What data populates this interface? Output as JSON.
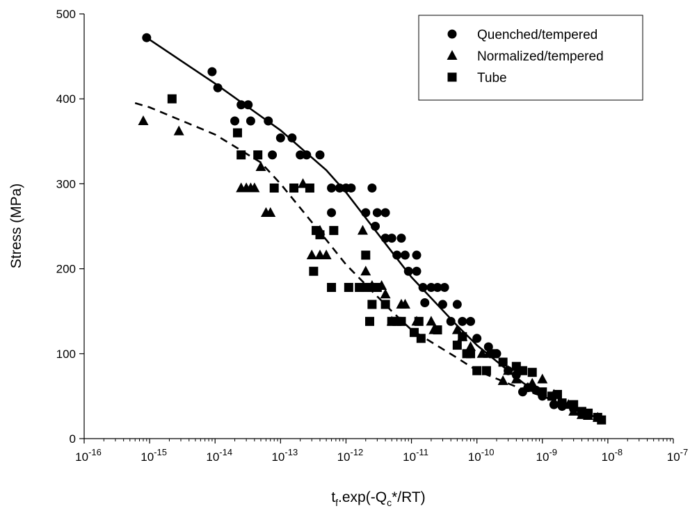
{
  "chart_data": {
    "type": "scatter",
    "title": "",
    "xlabel": {
      "base": "t",
      "sub": "f",
      "mid": ".exp(-Q",
      "sub2": "c",
      "tail": "*/RT)"
    },
    "ylabel": "Stress (MPa)",
    "xscale": "log",
    "xlim": [
      1e-16,
      1e-07
    ],
    "ylim": [
      0,
      500
    ],
    "x_ticks": [
      {
        "base": "10",
        "exp": "-16",
        "value": 1e-16
      },
      {
        "base": "10",
        "exp": "-15",
        "value": 1e-15
      },
      {
        "base": "10",
        "exp": "-14",
        "value": 1e-14
      },
      {
        "base": "10",
        "exp": "-13",
        "value": 1e-13
      },
      {
        "base": "10",
        "exp": "-12",
        "value": 1e-12
      },
      {
        "base": "10",
        "exp": "-11",
        "value": 1e-11
      },
      {
        "base": "10",
        "exp": "-10",
        "value": 1e-10
      },
      {
        "base": "10",
        "exp": "-9",
        "value": 1e-09
      },
      {
        "base": "10",
        "exp": "-8",
        "value": 1e-08
      },
      {
        "base": "10",
        "exp": "-7",
        "value": 1e-07
      }
    ],
    "y_ticks": [
      0,
      100,
      200,
      300,
      400,
      500
    ],
    "grid": false,
    "legend_position": "top-right",
    "series": [
      {
        "name": "Quenched/tempered",
        "marker": "circle",
        "color": "#000000",
        "points": [
          [
            9e-16,
            472
          ],
          [
            9e-15,
            432
          ],
          [
            1.1e-14,
            413
          ],
          [
            2.5e-14,
            393
          ],
          [
            3.2e-14,
            393
          ],
          [
            2e-14,
            374
          ],
          [
            3.5e-14,
            374
          ],
          [
            6.5e-14,
            374
          ],
          [
            7.5e-14,
            334
          ],
          [
            1e-13,
            354
          ],
          [
            1.5e-13,
            354
          ],
          [
            2e-13,
            334
          ],
          [
            2.5e-13,
            334
          ],
          [
            4e-13,
            334
          ],
          [
            6e-13,
            295
          ],
          [
            8e-13,
            295
          ],
          [
            1e-12,
            295
          ],
          [
            1.2e-12,
            295
          ],
          [
            6e-13,
            266
          ],
          [
            2.5e-12,
            295
          ],
          [
            2e-12,
            266
          ],
          [
            3e-12,
            266
          ],
          [
            4e-12,
            266
          ],
          [
            2.8e-12,
            250
          ],
          [
            4e-12,
            236
          ],
          [
            5e-12,
            236
          ],
          [
            7e-12,
            236
          ],
          [
            6e-12,
            216
          ],
          [
            8e-12,
            216
          ],
          [
            1.2e-11,
            216
          ],
          [
            9e-12,
            197
          ],
          [
            1.2e-11,
            197
          ],
          [
            1.5e-11,
            178
          ],
          [
            2e-11,
            178
          ],
          [
            2.5e-11,
            178
          ],
          [
            3.2e-11,
            178
          ],
          [
            1.6e-11,
            160
          ],
          [
            3e-11,
            158
          ],
          [
            4e-11,
            138
          ],
          [
            5e-11,
            158
          ],
          [
            6e-11,
            138
          ],
          [
            8e-11,
            138
          ],
          [
            1e-10,
            118
          ],
          [
            1.5e-10,
            108
          ],
          [
            2e-10,
            100
          ],
          [
            2.5e-10,
            90
          ],
          [
            3e-10,
            80
          ],
          [
            4e-10,
            75
          ],
          [
            5e-10,
            55
          ],
          [
            6e-10,
            60
          ],
          [
            8e-10,
            57
          ],
          [
            1e-09,
            50
          ],
          [
            1.5e-09,
            40
          ],
          [
            2e-09,
            38
          ],
          [
            3e-09,
            35
          ],
          [
            4e-09,
            30
          ],
          [
            5e-09,
            28
          ],
          [
            7e-09,
            25
          ]
        ]
      },
      {
        "name": "Normalized/tempered",
        "marker": "triangle",
        "color": "#000000",
        "points": [
          [
            8e-16,
            374
          ],
          [
            2.8e-15,
            362
          ],
          [
            2.5e-14,
            295
          ],
          [
            3e-14,
            295
          ],
          [
            3.5e-14,
            295
          ],
          [
            4e-14,
            295
          ],
          [
            5e-14,
            320
          ],
          [
            6e-14,
            266
          ],
          [
            7e-14,
            266
          ],
          [
            3e-13,
            216
          ],
          [
            2.2e-13,
            300
          ],
          [
            4e-13,
            216
          ],
          [
            5e-13,
            216
          ],
          [
            4e-13,
            245
          ],
          [
            1.8e-12,
            245
          ],
          [
            2e-12,
            197
          ],
          [
            2.5e-12,
            180
          ],
          [
            3.5e-12,
            180
          ],
          [
            4e-12,
            170
          ],
          [
            5e-12,
            138
          ],
          [
            7e-12,
            158
          ],
          [
            8e-12,
            158
          ],
          [
            1.2e-11,
            138
          ],
          [
            2e-11,
            138
          ],
          [
            2.2e-11,
            128
          ],
          [
            5e-11,
            128
          ],
          [
            6e-11,
            120
          ],
          [
            8e-11,
            108
          ],
          [
            1.2e-10,
            100
          ],
          [
            1.5e-10,
            100
          ],
          [
            2.5e-10,
            68
          ],
          [
            3e-10,
            80
          ],
          [
            4e-10,
            70
          ],
          [
            6e-10,
            60
          ],
          [
            7e-10,
            65
          ],
          [
            1e-09,
            70
          ],
          [
            1.5e-09,
            52
          ],
          [
            2.5e-09,
            40
          ],
          [
            3e-09,
            32
          ],
          [
            4e-09,
            28
          ],
          [
            5e-09,
            27
          ],
          [
            7e-09,
            25
          ]
        ]
      },
      {
        "name": "Tube",
        "marker": "square",
        "color": "#000000",
        "points": [
          [
            2.2e-15,
            400
          ],
          [
            2.2e-14,
            360
          ],
          [
            2.5e-14,
            334
          ],
          [
            4.5e-14,
            334
          ],
          [
            8e-14,
            295
          ],
          [
            1.6e-13,
            295
          ],
          [
            2.8e-13,
            295
          ],
          [
            3.5e-13,
            245
          ],
          [
            3.2e-13,
            197
          ],
          [
            4e-13,
            240
          ],
          [
            6.5e-13,
            245
          ],
          [
            6e-13,
            178
          ],
          [
            1.1e-12,
            178
          ],
          [
            1.6e-12,
            178
          ],
          [
            2e-12,
            178
          ],
          [
            2e-12,
            216
          ],
          [
            2.5e-12,
            178
          ],
          [
            3e-12,
            178
          ],
          [
            2.5e-12,
            158
          ],
          [
            4e-12,
            158
          ],
          [
            2.3e-12,
            138
          ],
          [
            5e-12,
            138
          ],
          [
            6e-12,
            138
          ],
          [
            7e-12,
            138
          ],
          [
            1.1e-11,
            125
          ],
          [
            1.3e-11,
            138
          ],
          [
            1.4e-11,
            118
          ],
          [
            2.5e-11,
            128
          ],
          [
            5e-11,
            110
          ],
          [
            6e-11,
            120
          ],
          [
            7e-11,
            100
          ],
          [
            8e-11,
            100
          ],
          [
            1e-10,
            80
          ],
          [
            1.4e-10,
            80
          ],
          [
            1.8e-10,
            100
          ],
          [
            2.5e-10,
            90
          ],
          [
            4e-10,
            85
          ],
          [
            5e-10,
            80
          ],
          [
            7e-10,
            78
          ],
          [
            1e-09,
            55
          ],
          [
            1.4e-09,
            50
          ],
          [
            1.7e-09,
            52
          ],
          [
            2e-09,
            42
          ],
          [
            3e-09,
            40
          ],
          [
            4e-09,
            32
          ],
          [
            5e-09,
            30
          ],
          [
            7e-09,
            25
          ],
          [
            8e-09,
            22
          ]
        ]
      }
    ],
    "fit_lines": [
      {
        "for_series": "Quenched/tempered",
        "style": "solid",
        "points": [
          [
            9e-16,
            472
          ],
          [
            1e-14,
            418
          ],
          [
            1e-13,
            363
          ],
          [
            5e-13,
            316
          ],
          [
            1e-12,
            290
          ],
          [
            5e-12,
            220
          ],
          [
            1e-11,
            190
          ],
          [
            5e-11,
            133
          ],
          [
            1e-10,
            110
          ],
          [
            5e-10,
            66
          ],
          [
            1e-09,
            50
          ],
          [
            5e-09,
            28
          ],
          [
            8e-09,
            24
          ]
        ]
      },
      {
        "for_series": "Normalized/tempered",
        "style": "dashed",
        "points": [
          [
            6e-16,
            395
          ],
          [
            1e-15,
            390
          ],
          [
            1e-14,
            358
          ],
          [
            5e-14,
            325
          ],
          [
            1e-13,
            300
          ],
          [
            5e-13,
            234
          ],
          [
            1e-12,
            205
          ],
          [
            5e-12,
            150
          ],
          [
            1e-11,
            128
          ],
          [
            5e-11,
            95
          ],
          [
            1e-10,
            80
          ],
          [
            5e-10,
            58
          ],
          [
            1e-09,
            50
          ],
          [
            5e-09,
            30
          ],
          [
            8e-09,
            26
          ]
        ]
      }
    ]
  }
}
